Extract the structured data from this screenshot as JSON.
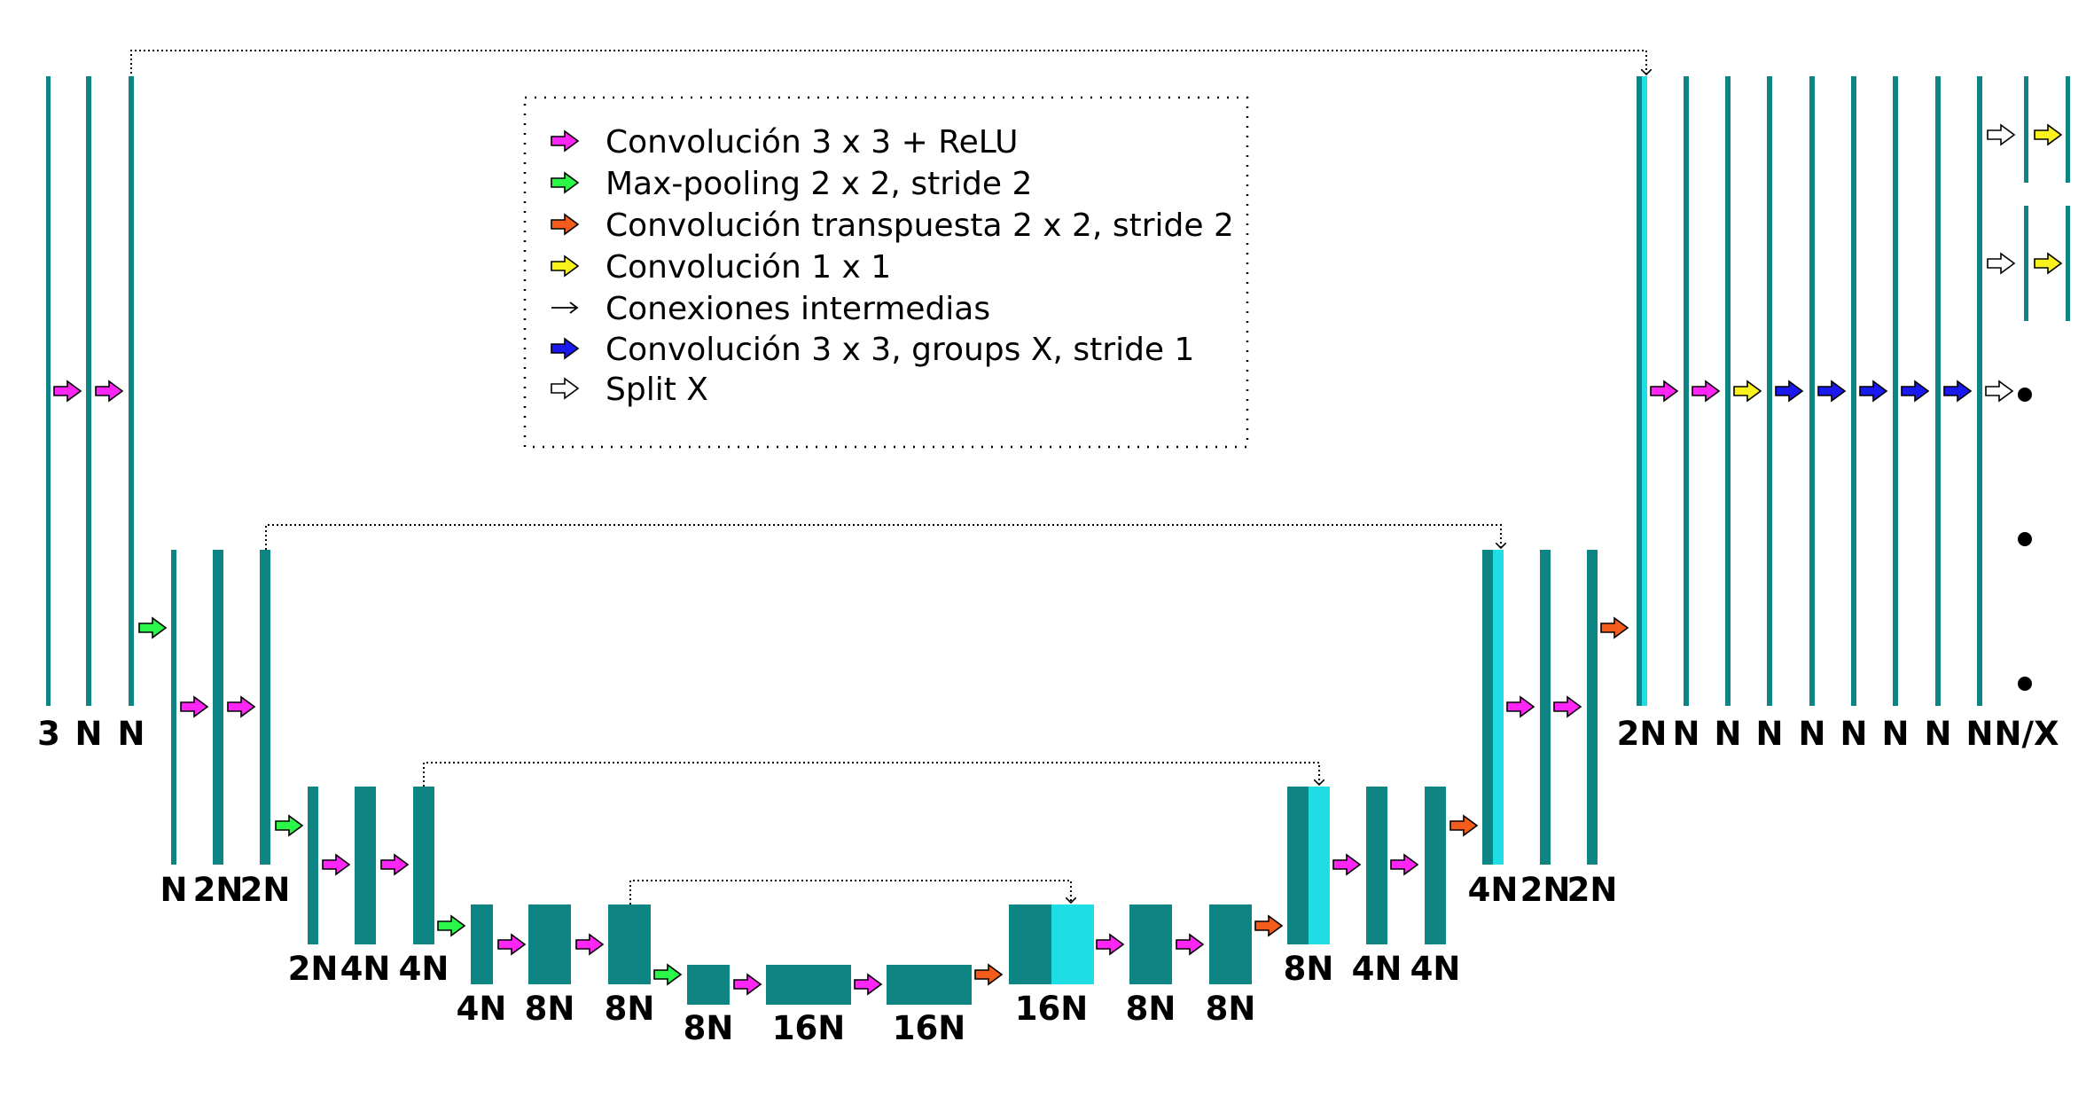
{
  "legend": [
    {
      "arrow": "magenta",
      "text": "Convolución 3 x 3 + ReLU"
    },
    {
      "arrow": "green",
      "text": "Max-pooling 2 x 2, stride 2"
    },
    {
      "arrow": "orange",
      "text": "Convolución transpuesta 2 x 2, stride 2"
    },
    {
      "arrow": "yellow",
      "text": "Convolución 1 x 1"
    },
    {
      "arrow": "thin",
      "text": "Conexiones intermedias"
    },
    {
      "arrow": "blue",
      "text": "Convolución 3 x 3, groups X, stride 1"
    },
    {
      "arrow": "white",
      "text": "Split X"
    }
  ],
  "colors": {
    "block": "#0e8583",
    "concat": "#1edde5",
    "magenta": "#ff25f5",
    "green": "#2af747",
    "orange": "#f45c1b",
    "yellow": "#f9f21d",
    "blue": "#1919f0",
    "white": "#ffffff"
  },
  "labels": {
    "enc1": [
      "3",
      "N",
      "N"
    ],
    "enc2": [
      "N",
      "2N",
      "2N"
    ],
    "enc3": [
      "2N",
      "4N",
      "4N"
    ],
    "enc4": [
      "4N",
      "8N",
      "8N"
    ],
    "bottleneck": [
      "8N",
      "16N",
      "16N"
    ],
    "dec4": [
      "16N",
      "8N",
      "8N"
    ],
    "dec3": [
      "8N",
      "4N",
      "4N"
    ],
    "dec2": [
      "4N",
      "2N",
      "2N"
    ],
    "dec1": [
      "2N",
      "N",
      "N",
      "N",
      "N",
      "N",
      "N",
      "N",
      "N",
      "N/X"
    ]
  }
}
